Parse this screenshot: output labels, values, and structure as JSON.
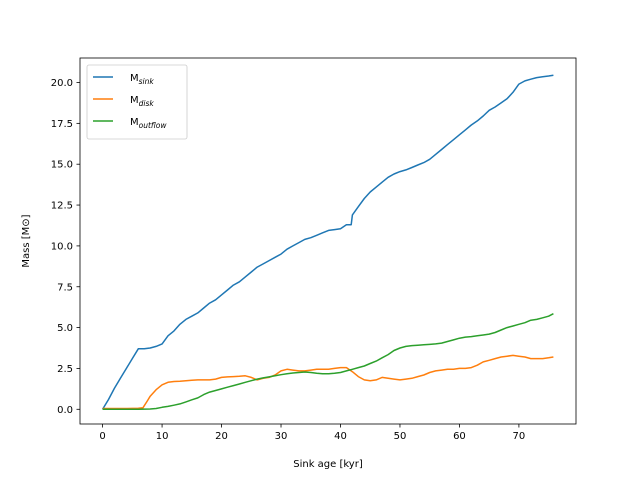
{
  "chart_data": {
    "type": "line",
    "title": "",
    "xlabel": "Sink age [kyr]",
    "ylabel": "Mass [M⊙]",
    "xlim": [
      -3.8,
      79.6
    ],
    "ylim": [
      -0.9,
      21.5
    ],
    "xticks": [
      0,
      10,
      20,
      30,
      40,
      50,
      60,
      70
    ],
    "yticks": [
      0.0,
      2.5,
      5.0,
      7.5,
      10.0,
      12.5,
      15.0,
      17.5,
      20.0
    ],
    "ytick_labels": [
      "0.0",
      "2.5",
      "5.0",
      "7.5",
      "10.0",
      "12.5",
      "15.0",
      "17.5",
      "20.0"
    ],
    "grid": false,
    "legend_position": "upper-left",
    "series": [
      {
        "name": "M",
        "subscript": "sink",
        "color": "#1f77b4",
        "x": [
          0,
          1,
          2,
          3,
          4,
          5,
          6,
          7,
          8,
          9,
          10,
          11,
          12,
          13,
          14,
          15,
          16,
          17,
          18,
          19,
          20,
          21,
          22,
          23,
          24,
          25,
          26,
          27,
          28,
          29,
          30,
          31,
          32,
          33,
          34,
          35,
          36,
          37,
          38,
          39,
          40,
          41,
          41.8,
          42,
          43,
          44,
          45,
          46,
          47,
          48,
          49,
          50,
          51,
          52,
          53,
          54,
          55,
          56,
          57,
          58,
          59,
          60,
          61,
          62,
          63,
          64,
          65,
          66,
          67,
          68,
          69,
          70,
          71,
          72,
          73,
          74,
          75,
          75.8
        ],
        "y": [
          0.0,
          0.6,
          1.3,
          1.9,
          2.5,
          3.1,
          3.7,
          3.7,
          3.75,
          3.85,
          4.0,
          4.5,
          4.8,
          5.2,
          5.5,
          5.7,
          5.9,
          6.2,
          6.5,
          6.7,
          7.0,
          7.3,
          7.6,
          7.8,
          8.1,
          8.4,
          8.7,
          8.9,
          9.1,
          9.3,
          9.5,
          9.8,
          10.0,
          10.2,
          10.4,
          10.5,
          10.65,
          10.8,
          10.95,
          11.0,
          11.05,
          11.3,
          11.3,
          11.9,
          12.4,
          12.9,
          13.3,
          13.6,
          13.9,
          14.2,
          14.4,
          14.55,
          14.65,
          14.8,
          14.95,
          15.1,
          15.3,
          15.6,
          15.9,
          16.2,
          16.5,
          16.8,
          17.1,
          17.4,
          17.65,
          17.95,
          18.3,
          18.5,
          18.75,
          19.0,
          19.4,
          19.9,
          20.1,
          20.2,
          20.3,
          20.35,
          20.4,
          20.45
        ]
      },
      {
        "name": "M",
        "subscript": "disk",
        "color": "#ff7f0e",
        "x": [
          0,
          2,
          4,
          6,
          6.8,
          7.5,
          8,
          9,
          10,
          11,
          12,
          13,
          14,
          15,
          16,
          17,
          18,
          19,
          20,
          21,
          22,
          23,
          24,
          25,
          26,
          27,
          28,
          29,
          30,
          31,
          32,
          33,
          34,
          35,
          36,
          37,
          38,
          39,
          40,
          41,
          42,
          43,
          44,
          45,
          46,
          47,
          48,
          49,
          50,
          51,
          52,
          53,
          54,
          55,
          56,
          57,
          58,
          59,
          60,
          61,
          62,
          63,
          64,
          65,
          66,
          67,
          68,
          69,
          70,
          71,
          72,
          73,
          74,
          75,
          75.8
        ],
        "y": [
          0.05,
          0.05,
          0.05,
          0.07,
          0.1,
          0.5,
          0.8,
          1.2,
          1.5,
          1.65,
          1.7,
          1.72,
          1.75,
          1.78,
          1.8,
          1.8,
          1.8,
          1.85,
          1.95,
          1.98,
          2.0,
          2.02,
          2.05,
          1.95,
          1.8,
          1.9,
          1.95,
          2.1,
          2.35,
          2.45,
          2.4,
          2.35,
          2.35,
          2.4,
          2.45,
          2.45,
          2.45,
          2.5,
          2.55,
          2.55,
          2.3,
          2.0,
          1.8,
          1.75,
          1.8,
          1.95,
          1.9,
          1.85,
          1.8,
          1.85,
          1.9,
          2.0,
          2.1,
          2.25,
          2.35,
          2.4,
          2.45,
          2.45,
          2.5,
          2.5,
          2.55,
          2.7,
          2.9,
          3.0,
          3.1,
          3.2,
          3.25,
          3.3,
          3.25,
          3.2,
          3.1,
          3.1,
          3.1,
          3.15,
          3.2
        ]
      },
      {
        "name": "M",
        "subscript": "outflow",
        "color": "#2ca02c",
        "x": [
          0,
          2,
          4,
          6,
          8,
          9,
          10,
          11,
          12,
          13,
          14,
          15,
          16,
          17,
          18,
          19,
          20,
          21,
          22,
          23,
          24,
          25,
          26,
          27,
          28,
          29,
          30,
          31,
          32,
          33,
          34,
          35,
          36,
          37,
          38,
          39,
          40,
          41,
          42,
          43,
          44,
          45,
          46,
          47,
          48,
          49,
          50,
          51,
          52,
          53,
          54,
          55,
          56,
          57,
          58,
          59,
          60,
          61,
          62,
          63,
          64,
          65,
          66,
          67,
          68,
          69,
          70,
          71,
          72,
          73,
          74,
          75,
          75.8
        ],
        "y": [
          0.0,
          0.0,
          0.0,
          0.0,
          0.02,
          0.05,
          0.12,
          0.18,
          0.25,
          0.33,
          0.45,
          0.58,
          0.7,
          0.9,
          1.05,
          1.15,
          1.25,
          1.35,
          1.45,
          1.55,
          1.65,
          1.75,
          1.85,
          1.92,
          1.98,
          2.05,
          2.12,
          2.18,
          2.22,
          2.25,
          2.28,
          2.25,
          2.2,
          2.18,
          2.18,
          2.2,
          2.25,
          2.35,
          2.45,
          2.55,
          2.65,
          2.8,
          2.95,
          3.15,
          3.35,
          3.6,
          3.75,
          3.85,
          3.9,
          3.92,
          3.95,
          3.97,
          4.0,
          4.05,
          4.15,
          4.25,
          4.35,
          4.42,
          4.45,
          4.5,
          4.55,
          4.6,
          4.7,
          4.85,
          5.0,
          5.1,
          5.2,
          5.3,
          5.45,
          5.5,
          5.6,
          5.7,
          5.85
        ]
      }
    ]
  }
}
